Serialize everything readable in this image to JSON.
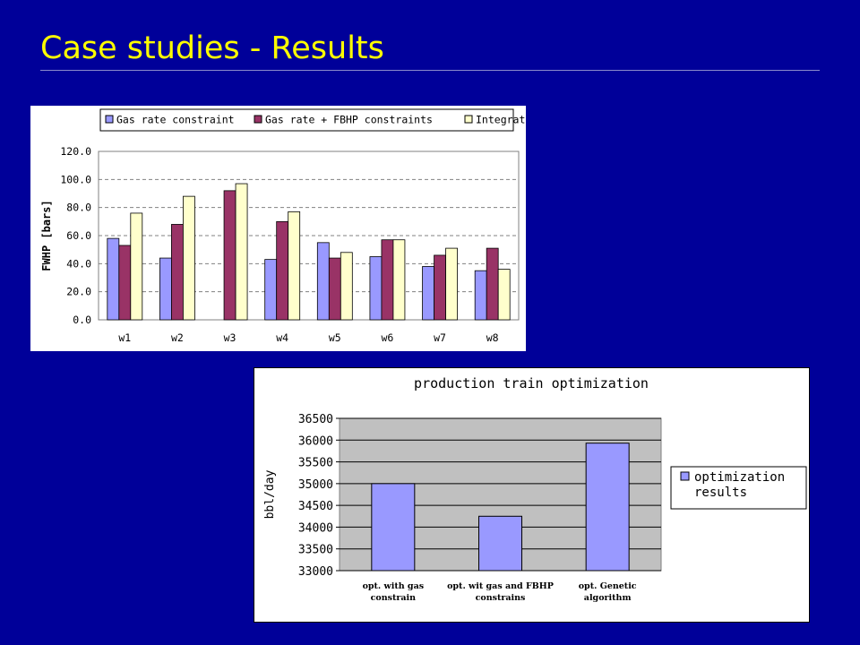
{
  "slide": {
    "title": "Case studies - Results"
  },
  "colors": {
    "background": "#000099",
    "title": "#ffff00",
    "gas_rate": "#9999ff",
    "gas_fbhp": "#993366",
    "integrated": "#ffffcc",
    "plot_area_chart2": "#c0c0c0"
  },
  "chart_data": [
    {
      "type": "bar",
      "title": "",
      "xlabel": "",
      "ylabel": "FWHP [bars]",
      "ylim": [
        0,
        120
      ],
      "y_ticks": [
        "0.0",
        "20.0",
        "40.0",
        "60.0",
        "80.0",
        "100.0",
        "120.0"
      ],
      "grid": true,
      "legend_position": "top",
      "categories": [
        "w1",
        "w2",
        "w3",
        "w4",
        "w5",
        "w6",
        "w7",
        "w8"
      ],
      "series": [
        {
          "name": "Gas rate constraint",
          "color": "#9999ff",
          "values": [
            58,
            44,
            0,
            43,
            55,
            45,
            38,
            35
          ]
        },
        {
          "name": "Gas rate + FBHP constraints",
          "color": "#993366",
          "values": [
            53,
            68,
            92,
            70,
            44,
            57,
            46,
            51
          ]
        },
        {
          "name": "Integrated",
          "color": "#ffffcc",
          "values": [
            76,
            88,
            97,
            77,
            48,
            57,
            51,
            36
          ]
        }
      ]
    },
    {
      "type": "bar",
      "title": "production train optimization",
      "xlabel": "",
      "ylabel": "bbl/day",
      "ylim": [
        33000,
        36500
      ],
      "y_ticks": [
        "33000",
        "33500",
        "34000",
        "34500",
        "35000",
        "35500",
        "36000",
        "36500"
      ],
      "grid": true,
      "legend_position": "right",
      "categories": [
        [
          "opt. with gas",
          "constrain"
        ],
        [
          "opt. wit gas and FBHP",
          "constrains"
        ],
        [
          "opt. Genetic",
          "algorithm"
        ]
      ],
      "series": [
        {
          "name": "optimization results",
          "name_lines": [
            "optimization",
            "results"
          ],
          "color": "#9999ff",
          "values": [
            35000,
            34250,
            35930
          ]
        }
      ]
    }
  ]
}
